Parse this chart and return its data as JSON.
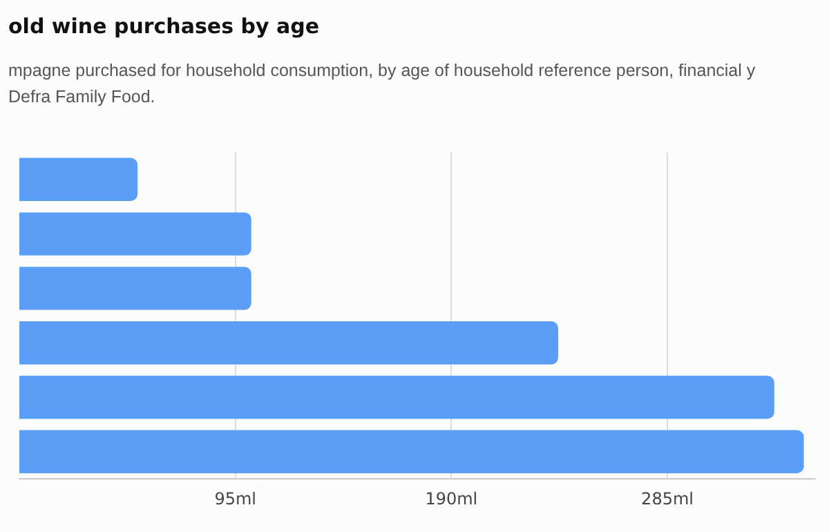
{
  "chart_data": {
    "type": "bar",
    "orientation": "horizontal",
    "title": "old wine purchases by age",
    "subtitle": "mpagne purchased for household consumption, by age of household reference person, financial y\nDefra Family Food.",
    "categories": [
      null,
      null,
      null,
      null,
      null,
      null
    ],
    "values": [
      52,
      102,
      102,
      237,
      332,
      345
    ],
    "color": "#5b9ef8",
    "xlim": [
      0,
      350
    ],
    "xticks": [
      {
        "value": 95,
        "label": "95ml"
      },
      {
        "value": 190,
        "label": "190ml"
      },
      {
        "value": 285,
        "label": "285ml"
      }
    ],
    "grid": "x",
    "legend": false
  }
}
